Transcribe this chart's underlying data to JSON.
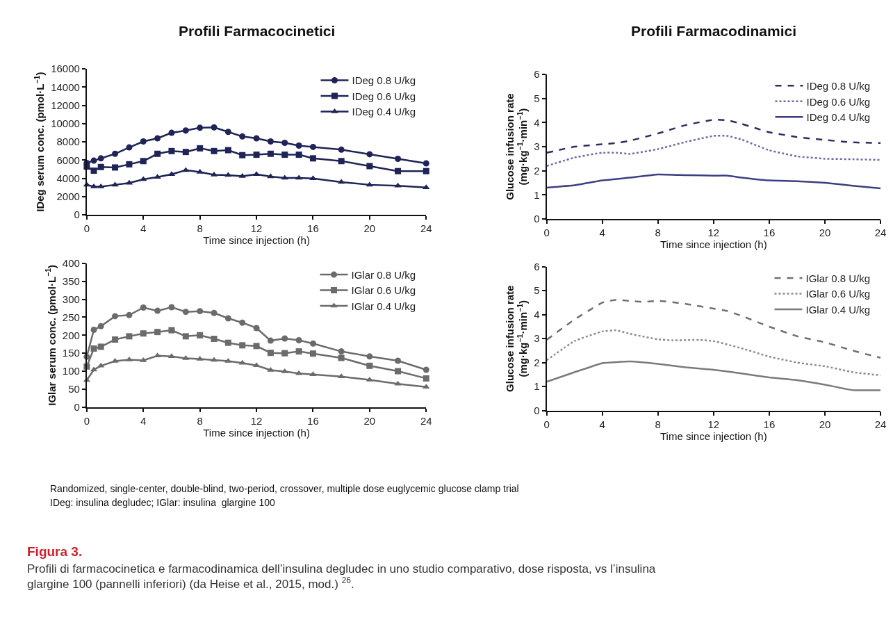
{
  "chart_data": [
    {
      "type": "line",
      "title": "Profili Farmacocinetici",
      "xlabel": "Time since injection (h)",
      "ylabel": "IDeg serum conc. (pmol·L$^{−1}$)",
      "xlim": [
        0,
        24
      ],
      "xticks": [
        0,
        4,
        8,
        12,
        16,
        20,
        24
      ],
      "ylim": [
        0,
        16000
      ],
      "yticks": [
        0,
        2000,
        4000,
        6000,
        8000,
        10000,
        12000,
        14000,
        16000
      ],
      "legend": "top right",
      "x": [
        0,
        0.5,
        1,
        2,
        3,
        4,
        5,
        6,
        7,
        8,
        9,
        10,
        11,
        12,
        13,
        14,
        15,
        16,
        18,
        20,
        22,
        24
      ],
      "series": [
        {
          "name": "IDeg 0.8 U/kg",
          "color": "#1f2456",
          "marker": "circle",
          "values": [
            5700,
            5950,
            6200,
            6700,
            7400,
            8050,
            8400,
            9000,
            9250,
            9550,
            9600,
            9100,
            8600,
            8400,
            8050,
            7900,
            7600,
            7450,
            7150,
            6650,
            6150,
            5650
          ]
        },
        {
          "name": "IDeg 0.6 U/kg",
          "color": "#1f2456",
          "marker": "square",
          "values": [
            5300,
            4850,
            5250,
            5200,
            5550,
            5900,
            6700,
            7000,
            6900,
            7300,
            7000,
            7100,
            6550,
            6600,
            6700,
            6600,
            6600,
            6200,
            5900,
            5350,
            4800,
            4800
          ]
        },
        {
          "name": "IDeg 0.4 U/kg",
          "color": "#1f2456",
          "marker": "triangle",
          "values": [
            3300,
            3100,
            3100,
            3300,
            3500,
            3900,
            4150,
            4450,
            4900,
            4700,
            4400,
            4350,
            4250,
            4450,
            4200,
            4050,
            4050,
            4000,
            3600,
            3300,
            3200,
            3000
          ]
        }
      ]
    },
    {
      "type": "line",
      "title": "Profili Farmacodinamici",
      "xlabel": "Time since injection (h)",
      "ylabel": "Glucose infusion rate\n(mg·kg$^{−1}$·min$^{−1}$)",
      "xlim": [
        0,
        24
      ],
      "xticks": [
        0,
        4,
        8,
        12,
        16,
        20,
        24
      ],
      "ylim": [
        0,
        6
      ],
      "yticks": [
        0,
        1,
        2,
        3,
        4,
        5,
        6
      ],
      "legend": "top right",
      "marker": "none",
      "series": [
        {
          "name": "IDeg 0.8 U/kg",
          "color": "#2b2e5e",
          "line_style": "dashed",
          "x": [
            0,
            2,
            4,
            5,
            6,
            8,
            10,
            12,
            13,
            14,
            16,
            18,
            20,
            22,
            24
          ],
          "values": [
            2.75,
            3.0,
            3.1,
            3.15,
            3.25,
            3.55,
            3.9,
            4.12,
            4.1,
            3.95,
            3.6,
            3.4,
            3.28,
            3.18,
            3.15
          ]
        },
        {
          "name": "IDeg 0.6 U/kg",
          "color": "#6a6ca6",
          "line_style": "dotted",
          "x": [
            0,
            2,
            4,
            5,
            6,
            8,
            10,
            12,
            13,
            14,
            16,
            18,
            20,
            22,
            24
          ],
          "values": [
            2.2,
            2.55,
            2.75,
            2.75,
            2.7,
            2.9,
            3.2,
            3.45,
            3.45,
            3.3,
            2.85,
            2.6,
            2.5,
            2.48,
            2.45
          ]
        },
        {
          "name": "IDeg 0.4 U/kg",
          "color": "#3d3f82",
          "line_style": "solid",
          "x": [
            0,
            2,
            4,
            6,
            8,
            10,
            12,
            13,
            14,
            16,
            18,
            20,
            22,
            24
          ],
          "values": [
            1.3,
            1.4,
            1.6,
            1.72,
            1.85,
            1.82,
            1.8,
            1.8,
            1.72,
            1.6,
            1.57,
            1.5,
            1.38,
            1.27
          ]
        }
      ]
    },
    {
      "type": "line",
      "xlabel": "Time since injection (h)",
      "ylabel": "IGlar serum conc. (pmol·L$^{−1}$)",
      "xlim": [
        0,
        24
      ],
      "xticks": [
        0,
        4,
        8,
        12,
        16,
        20,
        24
      ],
      "ylim": [
        0,
        400
      ],
      "yticks": [
        0,
        50,
        100,
        150,
        200,
        250,
        300,
        350,
        400
      ],
      "legend": "top right",
      "x": [
        0,
        0.5,
        1,
        2,
        3,
        4,
        5,
        6,
        7,
        8,
        9,
        10,
        11,
        12,
        13,
        14,
        15,
        16,
        18,
        20,
        22,
        24
      ],
      "series": [
        {
          "name": "IGlar 0.8 U/kg",
          "color": "#6b6b6b",
          "marker": "circle",
          "values": [
            140,
            215,
            225,
            253,
            256,
            277,
            268,
            278,
            265,
            267,
            262,
            247,
            235,
            220,
            185,
            191,
            186,
            177,
            155,
            141,
            129,
            104
          ]
        },
        {
          "name": "IGlar 0.6 U/kg",
          "color": "#6b6b6b",
          "marker": "square",
          "values": [
            113,
            163,
            168,
            188,
            197,
            205,
            209,
            214,
            197,
            200,
            190,
            179,
            172,
            170,
            151,
            150,
            155,
            149,
            137,
            115,
            100,
            80
          ]
        },
        {
          "name": "IGlar 0.4 U/kg",
          "color": "#6b6b6b",
          "marker": "triangle",
          "values": [
            75,
            104,
            115,
            128,
            132,
            130,
            143,
            141,
            136,
            134,
            131,
            128,
            123,
            116,
            103,
            99,
            94,
            91,
            85,
            76,
            65,
            56
          ]
        }
      ]
    },
    {
      "type": "line",
      "xlabel": "Time since injection (h)",
      "ylabel": "Glucose infusion rate\n(mg·kg$^{−1}$·min$^{−1}$)",
      "xlim": [
        0,
        24
      ],
      "xticks": [
        0,
        4,
        8,
        12,
        16,
        20,
        24
      ],
      "ylim": [
        0,
        6
      ],
      "yticks": [
        0,
        1,
        2,
        3,
        4,
        5,
        6
      ],
      "legend": "top right",
      "marker": "none",
      "series": [
        {
          "name": "IGlar 0.8 U/kg",
          "color": "#707070",
          "line_style": "dashed",
          "x": [
            0,
            2,
            4,
            5,
            6,
            7,
            8,
            10,
            12,
            13,
            14,
            16,
            18,
            20,
            22,
            24
          ],
          "values": [
            2.95,
            3.8,
            4.5,
            4.62,
            4.57,
            4.53,
            4.58,
            4.45,
            4.25,
            4.15,
            3.95,
            3.5,
            3.1,
            2.85,
            2.5,
            2.2
          ]
        },
        {
          "name": "IGlar 0.6 U/kg",
          "color": "#8c8c8c",
          "line_style": "dotted",
          "x": [
            0,
            2,
            4,
            5,
            6,
            8,
            9,
            11,
            12,
            14,
            16,
            18,
            20,
            22,
            24
          ],
          "values": [
            2.1,
            2.9,
            3.3,
            3.35,
            3.2,
            2.97,
            2.93,
            2.95,
            2.9,
            2.6,
            2.25,
            2.0,
            1.85,
            1.6,
            1.47
          ]
        },
        {
          "name": "IGlar 0.4 U/kg",
          "color": "#7a7a7a",
          "line_style": "solid",
          "x": [
            0,
            2,
            4,
            6,
            8,
            10,
            12,
            14,
            16,
            18,
            20,
            22,
            24
          ],
          "values": [
            1.2,
            1.6,
            1.98,
            2.05,
            1.95,
            1.8,
            1.7,
            1.55,
            1.38,
            1.27,
            1.08,
            0.85,
            0.85
          ]
        }
      ],
      "annotations": [
        "Randomized, single-center, double-blind, two-period, crossover, multiple dose euglycemic glucose clamp trial",
        "IDeg: insulina degludec; IGlar: insulina  glargine 100",
        "Figura 3.",
        "Profili di farmacocinetica e farmacodinamica dell’insulina degludec in uno studio comparativo, dose risposta, vs l’insulina glargine 100 (pannelli inferiori) (da Heise et al., 2015, mod.) $^{26}$."
      ]
    }
  ]
}
